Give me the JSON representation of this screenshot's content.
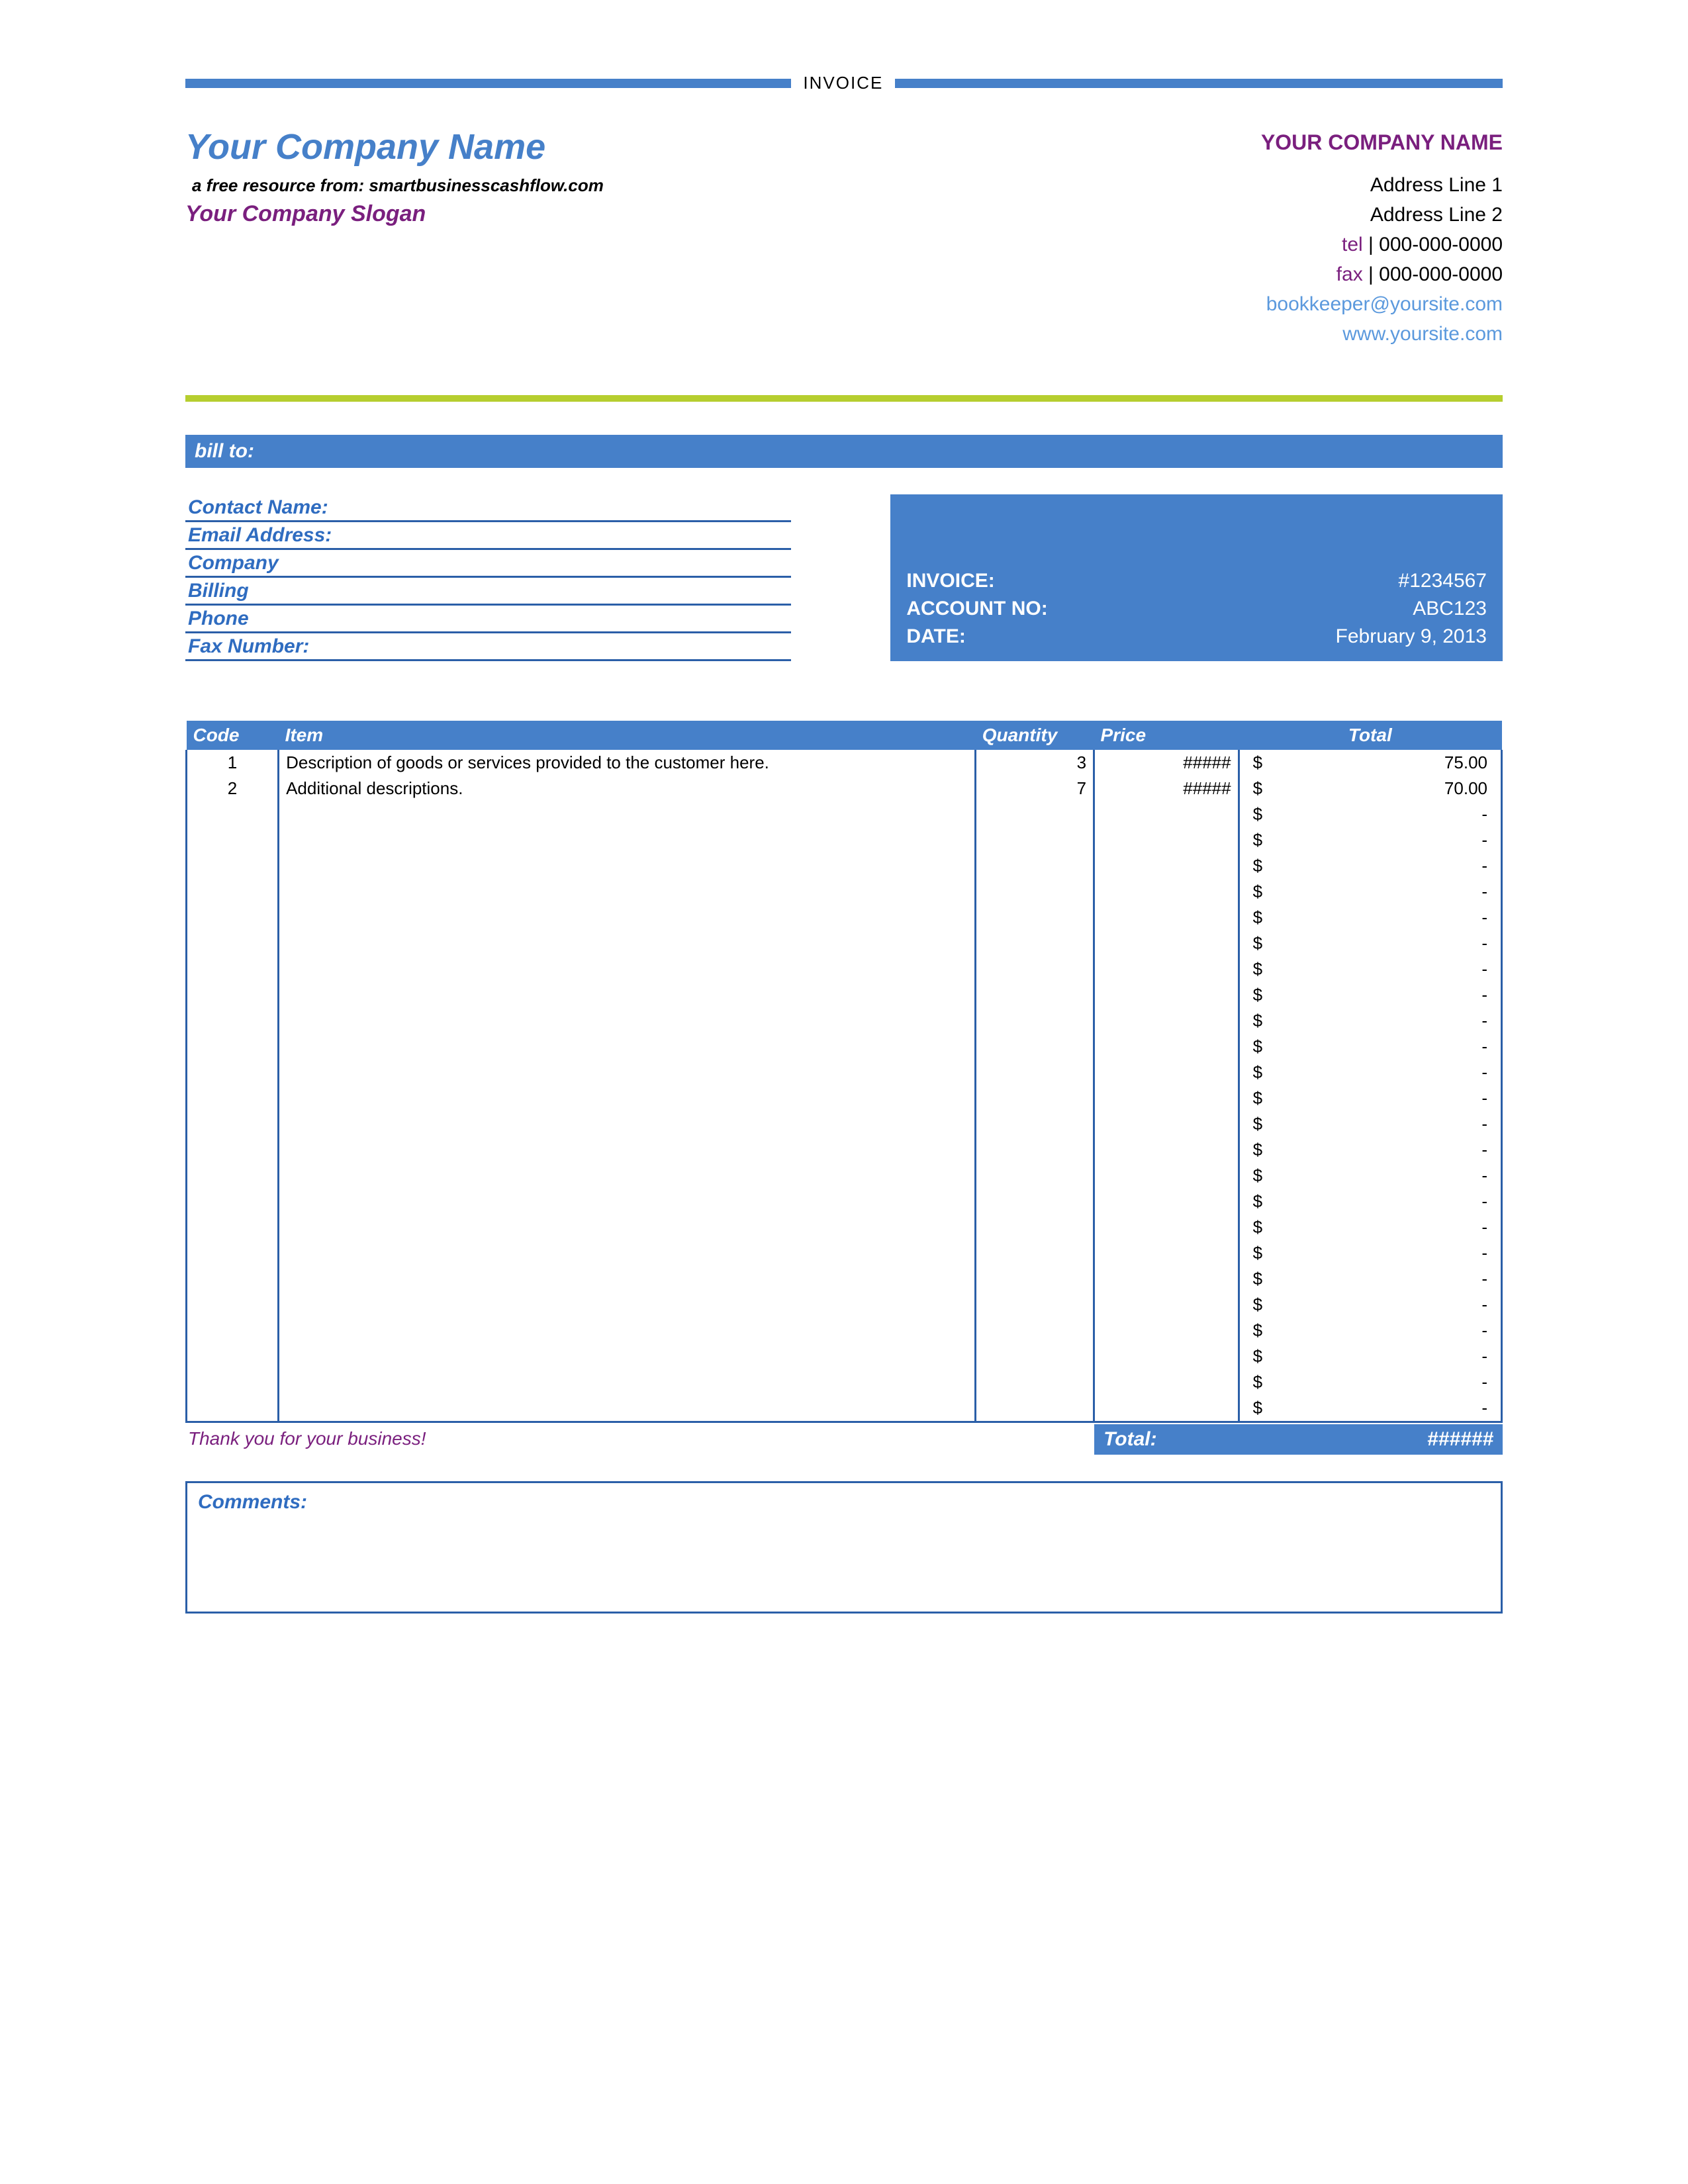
{
  "colors": {
    "blue": "#4680c9",
    "blue_dark": "#2f6cc0",
    "blue_border": "#2b5fa8",
    "purple": "#7a1f7e",
    "green": "#b6ce2f",
    "link": "#5b99dd",
    "text": "#111111"
  },
  "doc_title": "INVOICE",
  "header": {
    "company_name": "Your Company Name",
    "resource_line": "a free resource from: smartbusinesscashflow.com",
    "slogan": "Your Company Slogan",
    "right_company": "YOUR COMPANY NAME",
    "addr1": "Address Line 1",
    "addr2": "Address Line 2",
    "tel_label": "tel",
    "tel": "000-000-0000",
    "fax_label": "fax",
    "fax": "000-000-0000",
    "email": "bookkeeper@yoursite.com",
    "site": "www.yoursite.com"
  },
  "billto_label": "bill to:",
  "bill_fields": [
    "Contact Name:",
    "Email Address:",
    "Company",
    "Billing",
    "Phone",
    "Fax Number:"
  ],
  "invoice_meta": {
    "invoice_label": "INVOICE:",
    "invoice_no": "#1234567",
    "account_label": "ACCOUNT NO:",
    "account_no": "ABC123",
    "date_label": "DATE:",
    "date": "February 9, 2013"
  },
  "table": {
    "headers": {
      "code": "Code",
      "item": "Item",
      "qty": "Quantity",
      "price": "Price",
      "total": "Total"
    },
    "currency": "$",
    "empty_price": "#####",
    "empty_total": "-",
    "rows_count": 26,
    "rows": [
      {
        "code": "1",
        "item": "Description of goods or services provided to the customer here.",
        "qty": "3",
        "price": "#####",
        "total": "75.00"
      },
      {
        "code": "2",
        "item": "Additional descriptions.",
        "qty": "7",
        "price": "#####",
        "total": "70.00"
      }
    ]
  },
  "thankyou": "Thank you for your business!",
  "total_label": "Total:",
  "total_value": "######",
  "comments_label": "Comments:"
}
